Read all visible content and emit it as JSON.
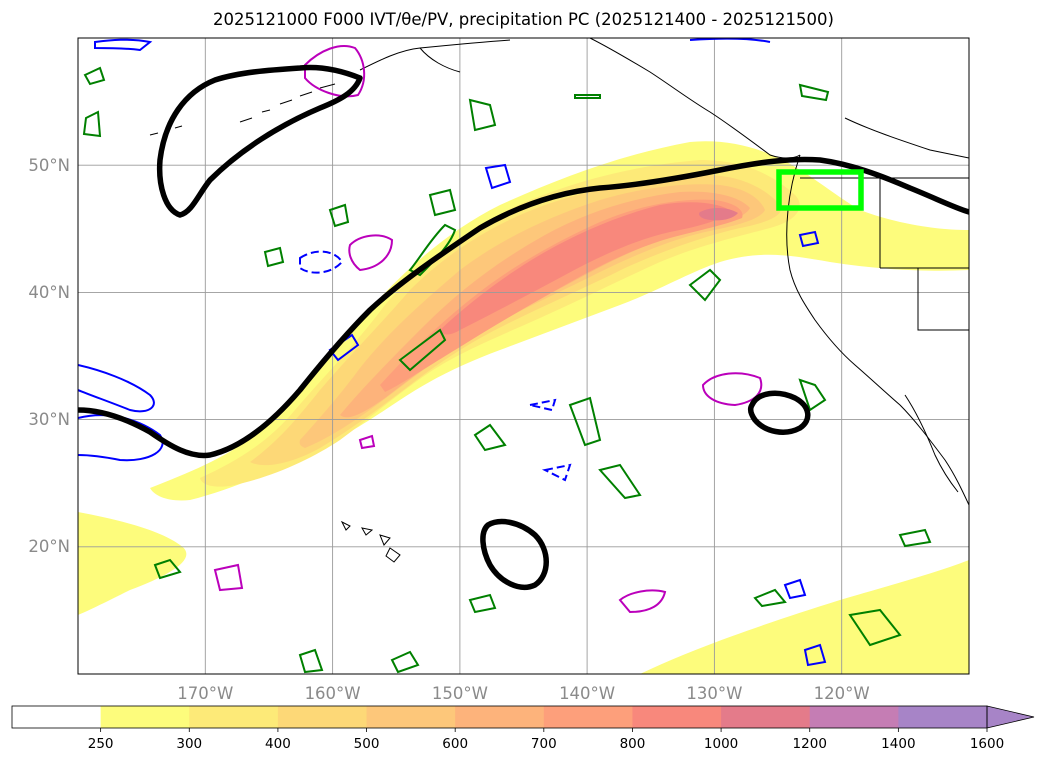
{
  "figure": {
    "title": "2025121000 F000 IVT/θe/PV, precipitation PC (2025121400 - 2025121500)"
  },
  "map": {
    "projection": "PlateCarree",
    "lon_range": [
      -180,
      -110
    ],
    "lat_range": [
      10,
      60
    ],
    "lon_ticks": [
      {
        "value": -170,
        "label": "170°W"
      },
      {
        "value": -160,
        "label": "160°W"
      },
      {
        "value": -150,
        "label": "150°W"
      },
      {
        "value": -140,
        "label": "140°W"
      },
      {
        "value": -130,
        "label": "130°W"
      },
      {
        "value": -120,
        "label": "120°W"
      }
    ],
    "lat_ticks": [
      {
        "value": 20,
        "label": "20°N"
      },
      {
        "value": 30,
        "label": "30°N"
      },
      {
        "value": 40,
        "label": "40°N"
      },
      {
        "value": 50,
        "label": "50°N"
      }
    ],
    "highlight_box": {
      "lon": [
        -125,
        -118.5
      ],
      "lat": [
        46.5,
        49.5
      ],
      "color": "#00ff00"
    },
    "colors": {
      "theta_e_contour": "#000000",
      "pv_contour_green": "#008000",
      "pv_contour_blue": "#0000ff",
      "pv_contour_magenta": "#bb00bb",
      "gridlines": "#9a9a9a"
    }
  },
  "colorbar": {
    "levels": [
      "250",
      "300",
      "400",
      "500",
      "600",
      "700",
      "800",
      "1000",
      "1200",
      "1400",
      "1600"
    ],
    "colors": [
      "#ffffff",
      "#fdfc7c",
      "#fdea78",
      "#fdd877",
      "#fdc77a",
      "#fdb37b",
      "#fd9f7b",
      "#f8887c",
      "#e47b8a",
      "#c57db4",
      "#a784c7"
    ],
    "extend": "max"
  }
}
